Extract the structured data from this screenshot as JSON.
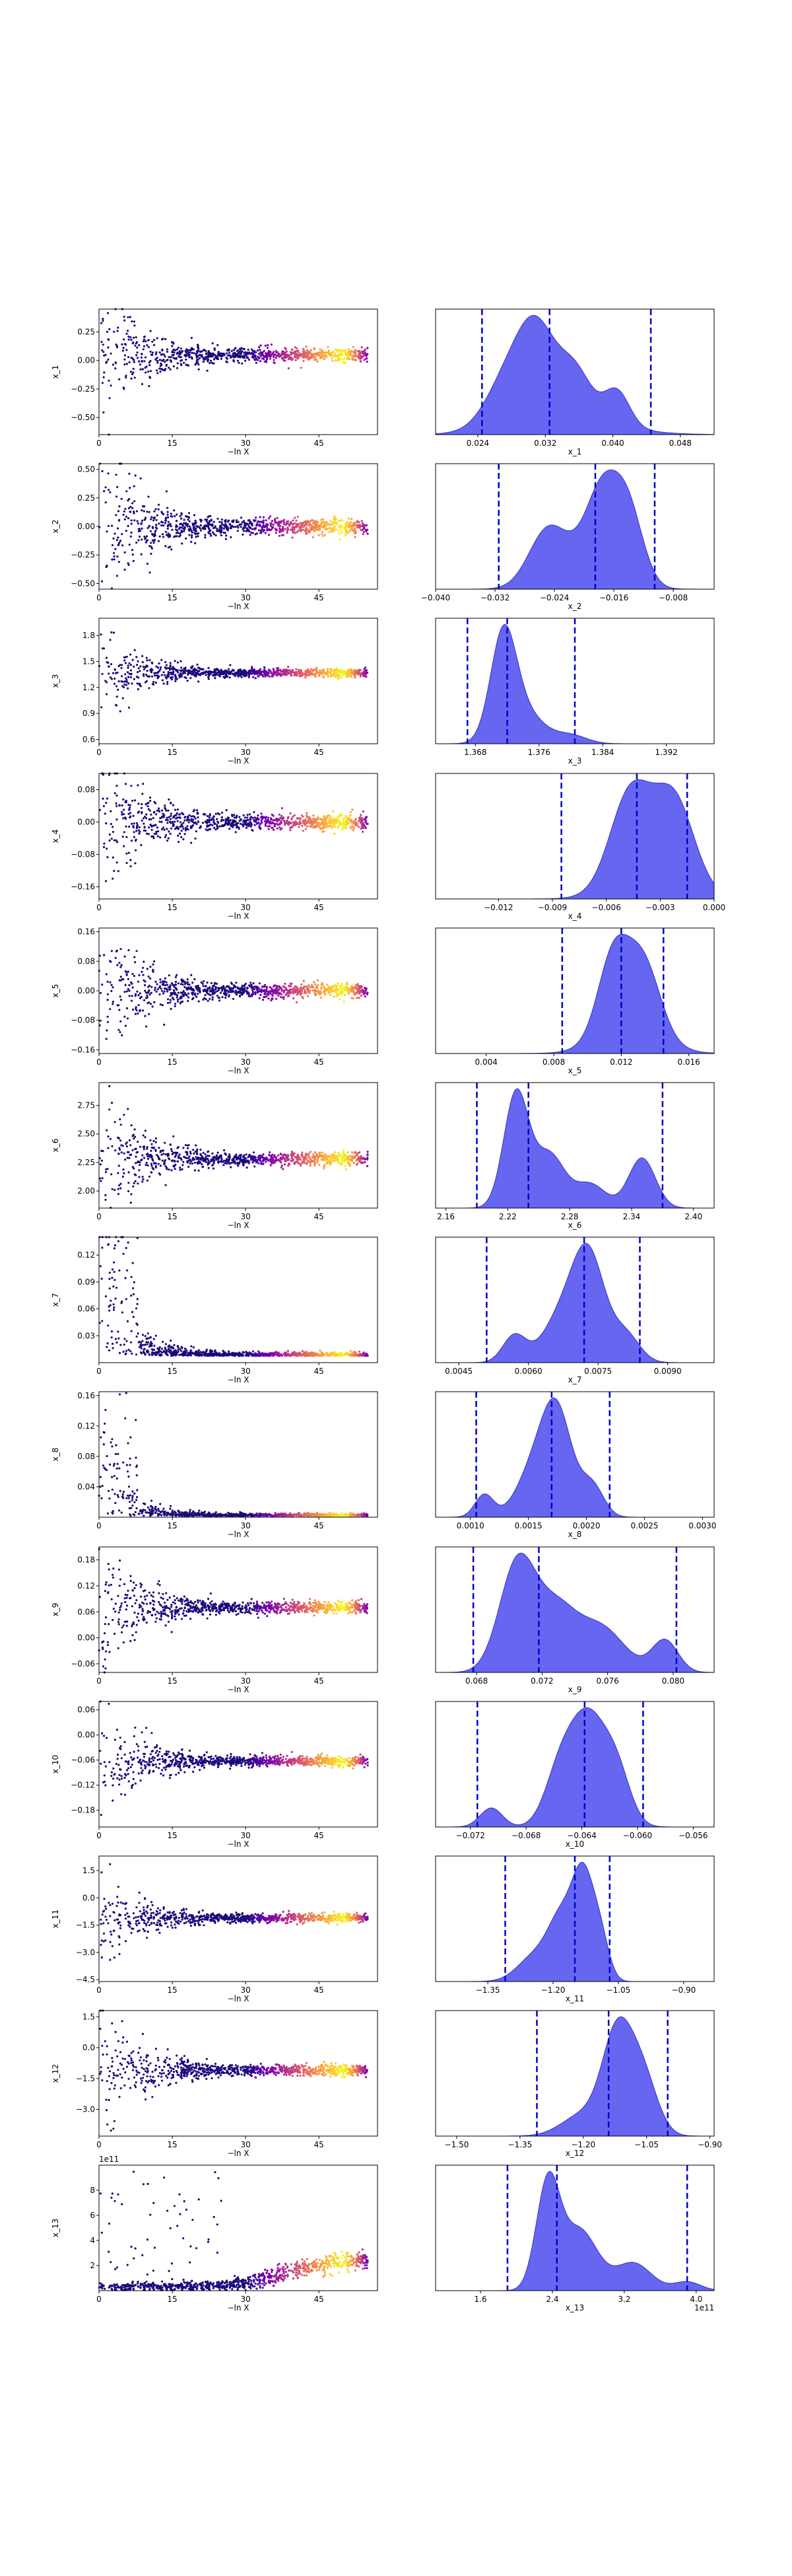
{
  "chart_data": {
    "type": "scatter",
    "description_panels": "trace plots (left) and marginal posterior density plots (right)",
    "rows": [
      {
        "param": "x1",
        "ylabel": "x_1",
        "trace_yticks": [
          "−0.50",
          "−0.25",
          "0.00",
          "0.25"
        ],
        "trace_ylim": [
          -0.65,
          0.45
        ],
        "trace_center": 0.05,
        "trace_spread": 0.12,
        "xlabel": "x_1",
        "density_xticks": [
          "0.024",
          "0.032",
          "0.040",
          "0.048"
        ],
        "density_xlim": [
          0.019,
          0.052
        ],
        "density_peaks": [
          {
            "mu": 0.0275,
            "sd": 0.0025,
            "h": 0.55
          },
          {
            "mu": 0.031,
            "sd": 0.0022,
            "h": 0.95
          },
          {
            "mu": 0.0355,
            "sd": 0.002,
            "h": 0.55
          },
          {
            "mu": 0.0405,
            "sd": 0.0015,
            "h": 0.4
          },
          {
            "mu": 0.034,
            "sd": 0.006,
            "h": 0.2
          }
        ],
        "quantiles": [
          0.0245,
          0.0325,
          0.0445
        ],
        "trace_offset": ""
      },
      {
        "param": "x2",
        "ylabel": "x_2",
        "trace_yticks": [
          "−0.50",
          "−0.25",
          "0.00",
          "0.25",
          "0.50"
        ],
        "trace_ylim": [
          -0.55,
          0.55
        ],
        "trace_center": 0.0,
        "trace_spread": 0.15,
        "xlabel": "x_2",
        "density_xticks": [
          "−0.040",
          "−0.032",
          "−0.024",
          "−0.016",
          "−0.008"
        ],
        "density_xlim": [
          -0.04,
          -0.0025
        ],
        "density_peaks": [
          {
            "mu": -0.025,
            "sd": 0.0025,
            "h": 0.62
          },
          {
            "mu": -0.0175,
            "sd": 0.0022,
            "h": 0.95
          },
          {
            "mu": -0.014,
            "sd": 0.002,
            "h": 0.85
          },
          {
            "mu": -0.02,
            "sd": 0.004,
            "h": 0.35
          }
        ],
        "quantiles": [
          -0.0315,
          -0.0185,
          -0.0105
        ],
        "trace_offset": ""
      },
      {
        "param": "x3",
        "ylabel": "x_3",
        "trace_yticks": [
          "0.6",
          "0.9",
          "1.2",
          "1.5",
          "1.8"
        ],
        "trace_ylim": [
          0.55,
          2.0
        ],
        "trace_center": 1.37,
        "trace_spread": 0.1,
        "xlabel": "x_3",
        "density_xticks": [
          "1.368",
          "1.376",
          "1.384",
          "1.392"
        ],
        "density_xlim": [
          1.363,
          1.398
        ],
        "density_peaks": [
          {
            "mu": 1.3715,
            "sd": 0.0016,
            "h": 0.95
          },
          {
            "mu": 1.374,
            "sd": 0.0025,
            "h": 0.3
          },
          {
            "mu": 1.38,
            "sd": 0.002,
            "h": 0.08
          }
        ],
        "quantiles": [
          1.367,
          1.372,
          1.3805
        ],
        "trace_offset": ""
      },
      {
        "param": "x4",
        "ylabel": "x_4",
        "trace_yticks": [
          "−0.16",
          "−0.08",
          "0.00",
          "0.08"
        ],
        "trace_ylim": [
          -0.19,
          0.12
        ],
        "trace_center": 0.0,
        "trace_spread": 0.04,
        "xlabel": "x_4",
        "density_xticks": [
          "−0.012",
          "−0.009",
          "−0.006",
          "−0.003",
          "0.000"
        ],
        "density_xlim": [
          -0.0155,
          0.0
        ],
        "density_peaks": [
          {
            "mu": -0.0047,
            "sd": 0.0011,
            "h": 0.95
          },
          {
            "mu": -0.0022,
            "sd": 0.0011,
            "h": 0.9
          },
          {
            "mu": -0.0035,
            "sd": 0.0018,
            "h": 0.35
          }
        ],
        "quantiles": [
          -0.0085,
          -0.0043,
          -0.0015
        ],
        "trace_offset": ""
      },
      {
        "param": "x5",
        "ylabel": "x_5",
        "trace_yticks": [
          "−0.16",
          "−0.08",
          "0.00",
          "0.08",
          "0.16"
        ],
        "trace_ylim": [
          -0.17,
          0.17
        ],
        "trace_center": 0.0,
        "trace_spread": 0.04,
        "xlabel": "x_5",
        "density_xticks": [
          "0.004",
          "0.008",
          "0.012",
          "0.016"
        ],
        "density_xlim": [
          0.001,
          0.0175
        ],
        "density_peaks": [
          {
            "mu": 0.0115,
            "sd": 0.0009,
            "h": 0.95
          },
          {
            "mu": 0.0133,
            "sd": 0.001,
            "h": 0.88
          },
          {
            "mu": 0.0125,
            "sd": 0.0018,
            "h": 0.3
          }
        ],
        "quantiles": [
          0.0085,
          0.012,
          0.0145
        ],
        "trace_offset": ""
      },
      {
        "param": "x6",
        "ylabel": "x_6",
        "trace_yticks": [
          "2.00",
          "2.25",
          "2.50",
          "2.75"
        ],
        "trace_ylim": [
          1.85,
          2.95
        ],
        "trace_center": 2.28,
        "trace_spread": 0.12,
        "xlabel": "x_6",
        "density_xticks": [
          "2.16",
          "2.22",
          "2.28",
          "2.34",
          "2.40"
        ],
        "density_xlim": [
          2.15,
          2.42
        ],
        "density_peaks": [
          {
            "mu": 2.228,
            "sd": 0.012,
            "h": 0.95
          },
          {
            "mu": 2.26,
            "sd": 0.015,
            "h": 0.45
          },
          {
            "mu": 2.35,
            "sd": 0.013,
            "h": 0.42
          },
          {
            "mu": 2.3,
            "sd": 0.015,
            "h": 0.2
          }
        ],
        "quantiles": [
          2.19,
          2.24,
          2.37
        ],
        "trace_offset": ""
      },
      {
        "param": "x7",
        "ylabel": "x_7",
        "trace_yticks": [
          "0.03",
          "0.06",
          "0.09",
          "0.12"
        ],
        "trace_ylim": [
          0.0,
          0.14
        ],
        "trace_center": 0.0075,
        "trace_spread": 0.004,
        "xlabel": "x_7",
        "density_xticks": [
          "0.0045",
          "0.0060",
          "0.0075",
          "0.0090"
        ],
        "density_xlim": [
          0.004,
          0.01
        ],
        "density_peaks": [
          {
            "mu": 0.0073,
            "sd": 0.00035,
            "h": 0.95
          },
          {
            "mu": 0.0067,
            "sd": 0.0004,
            "h": 0.4
          },
          {
            "mu": 0.0057,
            "sd": 0.00025,
            "h": 0.25
          },
          {
            "mu": 0.0081,
            "sd": 0.0003,
            "h": 0.25
          }
        ],
        "quantiles": [
          0.0051,
          0.0072,
          0.0084
        ],
        "trace_offset": ""
      },
      {
        "param": "x8",
        "ylabel": "x_8",
        "trace_yticks": [
          "0.04",
          "0.08",
          "0.12",
          "0.16"
        ],
        "trace_ylim": [
          0.0,
          0.165
        ],
        "trace_center": 0.0017,
        "trace_spread": 0.003,
        "xlabel": "x_8",
        "density_xticks": [
          "0.0010",
          "0.0015",
          "0.0020",
          "0.0025",
          "0.0030"
        ],
        "density_xlim": [
          0.0007,
          0.0031
        ],
        "density_peaks": [
          {
            "mu": 0.00175,
            "sd": 0.00013,
            "h": 0.95
          },
          {
            "mu": 0.00155,
            "sd": 0.00015,
            "h": 0.45
          },
          {
            "mu": 0.00112,
            "sd": 8e-05,
            "h": 0.22
          },
          {
            "mu": 0.00205,
            "sd": 0.0001,
            "h": 0.3
          }
        ],
        "quantiles": [
          0.00105,
          0.0017,
          0.0022
        ],
        "trace_offset": ""
      },
      {
        "param": "x9",
        "ylabel": "x_9",
        "trace_yticks": [
          "−0.06",
          "0.00",
          "0.06",
          "0.12",
          "0.18"
        ],
        "trace_ylim": [
          -0.08,
          0.21
        ],
        "trace_center": 0.07,
        "trace_spread": 0.03,
        "xlabel": "x_9",
        "density_xticks": [
          "0.068",
          "0.072",
          "0.076",
          "0.080"
        ],
        "density_xlim": [
          0.0655,
          0.0825
        ],
        "density_peaks": [
          {
            "mu": 0.0705,
            "sd": 0.0011,
            "h": 0.95
          },
          {
            "mu": 0.0728,
            "sd": 0.0012,
            "h": 0.5
          },
          {
            "mu": 0.0755,
            "sd": 0.0015,
            "h": 0.4
          },
          {
            "mu": 0.0795,
            "sd": 0.0008,
            "h": 0.28
          }
        ],
        "quantiles": [
          0.0678,
          0.0718,
          0.0802
        ],
        "trace_offset": ""
      },
      {
        "param": "x10",
        "ylabel": "x_10",
        "trace_yticks": [
          "−0.18",
          "−0.12",
          "−0.06",
          "0.00",
          "0.06"
        ],
        "trace_ylim": [
          -0.22,
          0.08
        ],
        "trace_center": -0.063,
        "trace_spread": 0.025,
        "xlabel": "x_10",
        "density_xticks": [
          "−0.072",
          "−0.068",
          "−0.064",
          "−0.060",
          "−0.056"
        ],
        "density_xlim": [
          -0.0745,
          -0.0545
        ],
        "density_peaks": [
          {
            "mu": -0.0635,
            "sd": 0.0012,
            "h": 0.95
          },
          {
            "mu": -0.0655,
            "sd": 0.0011,
            "h": 0.55
          },
          {
            "mu": -0.0705,
            "sd": 0.0008,
            "h": 0.18
          },
          {
            "mu": -0.0615,
            "sd": 0.001,
            "h": 0.5
          }
        ],
        "quantiles": [
          -0.0715,
          -0.0638,
          -0.0596
        ],
        "trace_offset": ""
      },
      {
        "param": "x11",
        "ylabel": "x_11",
        "trace_yticks": [
          "−4.5",
          "−3.0",
          "−1.5",
          "0.0",
          "1.5"
        ],
        "trace_ylim": [
          -4.6,
          2.3
        ],
        "trace_center": -1.1,
        "trace_spread": 0.5,
        "xlabel": "x_11",
        "density_xticks": [
          "−1.35",
          "−1.20",
          "−1.05",
          "−0.90"
        ],
        "density_xlim": [
          -1.47,
          -0.83
        ],
        "density_peaks": [
          {
            "mu": -1.13,
            "sd": 0.025,
            "h": 0.95
          },
          {
            "mu": -1.18,
            "sd": 0.03,
            "h": 0.55
          },
          {
            "mu": -1.24,
            "sd": 0.04,
            "h": 0.25
          },
          {
            "mu": -1.09,
            "sd": 0.02,
            "h": 0.35
          }
        ],
        "quantiles": [
          -1.31,
          -1.15,
          -1.07
        ],
        "trace_offset": ""
      },
      {
        "param": "x12",
        "ylabel": "x_12",
        "trace_yticks": [
          "−3.0",
          "−1.5",
          "0.0",
          "1.5"
        ],
        "trace_ylim": [
          -4.3,
          1.8
        ],
        "trace_center": -1.1,
        "trace_spread": 0.6,
        "xlabel": "x_12",
        "density_xticks": [
          "−1.50",
          "−1.35",
          "−1.20",
          "−1.05",
          "−0.90"
        ],
        "density_xlim": [
          -1.55,
          -0.89
        ],
        "density_peaks": [
          {
            "mu": -1.12,
            "sd": 0.035,
            "h": 0.9
          },
          {
            "mu": -1.06,
            "sd": 0.035,
            "h": 0.55
          },
          {
            "mu": -1.2,
            "sd": 0.05,
            "h": 0.2
          }
        ],
        "quantiles": [
          -1.31,
          -1.14,
          -1.0
        ],
        "trace_offset": ""
      },
      {
        "param": "x13",
        "ylabel": "x_13",
        "trace_yticks": [
          "2",
          "4",
          "6",
          "8"
        ],
        "trace_ylim": [
          0,
          10
        ],
        "trace_center": 2.5,
        "trace_spread": 0.8,
        "xlabel": "x_13",
        "density_xticks": [
          "1.6",
          "2.4",
          "3.2",
          "4.0"
        ],
        "density_xlim": [
          1.1,
          4.2
        ],
        "density_peaks": [
          {
            "mu": 2.35,
            "sd": 0.13,
            "h": 0.95
          },
          {
            "mu": 2.7,
            "sd": 0.2,
            "h": 0.55
          },
          {
            "mu": 3.3,
            "sd": 0.2,
            "h": 0.25
          },
          {
            "mu": 3.9,
            "sd": 0.15,
            "h": 0.08
          }
        ],
        "quantiles": [
          1.9,
          2.45,
          3.9
        ],
        "trace_offset": "1e11",
        "density_offset": "1e11"
      }
    ],
    "trace_xticks": [
      "0",
      "15",
      "30",
      "45"
    ],
    "trace_xlim": [
      0,
      57
    ],
    "trace_xlabel": "−ln X",
    "colors": {
      "density_fill": "#5555ee",
      "density_line": "#3333cc",
      "quantile_line": "#0000cc",
      "trace_low": "#1a0a7a",
      "trace_high": "#fde725"
    }
  }
}
